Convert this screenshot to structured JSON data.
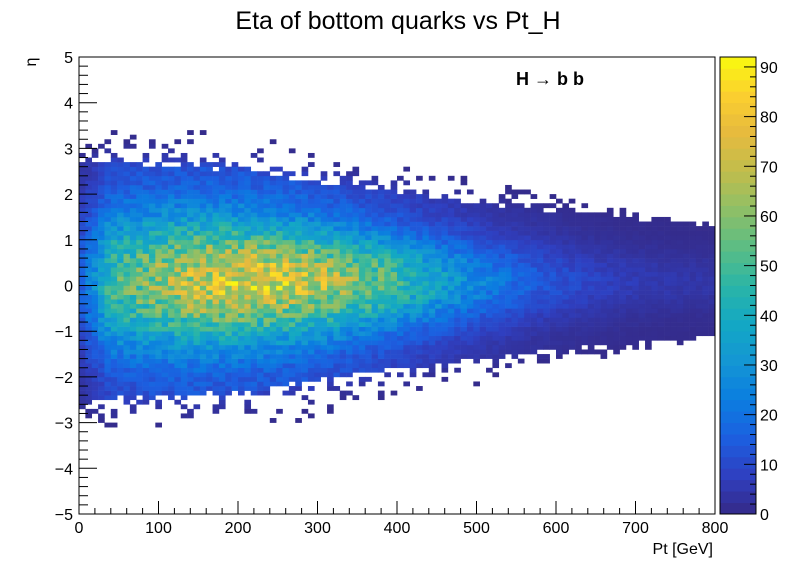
{
  "chart_data": {
    "type": "heatmap",
    "title": "Eta of bottom quarks vs Pt_H",
    "xlabel": "Pt [GeV]",
    "ylabel": "η",
    "annotation": "H → b b",
    "xlim": [
      0,
      800
    ],
    "ylim": [
      -5,
      5
    ],
    "x_ticks": [
      "0",
      "100",
      "200",
      "300",
      "400",
      "500",
      "600",
      "700",
      "800"
    ],
    "y_ticks": [
      "−5",
      "−4",
      "−3",
      "−2",
      "−1",
      "0",
      "1",
      "2",
      "3",
      "4",
      "5"
    ],
    "colorbar_ticks": [
      "0",
      "10",
      "20",
      "30",
      "40",
      "50",
      "60",
      "70",
      "80",
      "90"
    ],
    "z_range": [
      0,
      92
    ],
    "bins": {
      "x": 100,
      "y": 100
    },
    "grid": false,
    "stat_box": false,
    "distribution": {
      "eta_center": 0.1,
      "peak_pt": 220,
      "peak_counts": 75,
      "half_width_eta_at_pt": [
        [
          0,
          2.6
        ],
        [
          200,
          2.4
        ],
        [
          400,
          1.9
        ],
        [
          600,
          1.5
        ],
        [
          800,
          1.2
        ]
      ],
      "core_width_eta_at_pt": [
        [
          0,
          1.6
        ],
        [
          200,
          1.3
        ],
        [
          400,
          1.0
        ],
        [
          600,
          0.8
        ],
        [
          800,
          0.6
        ]
      ]
    },
    "palette": [
      "#352a87",
      "#2f3fc0",
      "#1c5fe0",
      "#0b7de0",
      "#1496d4",
      "#13a8c4",
      "#2bb5a6",
      "#5bbd85",
      "#8fbf66",
      "#c0bd4c",
      "#e6ba3e",
      "#fbcf2f",
      "#f9fb0e"
    ]
  }
}
